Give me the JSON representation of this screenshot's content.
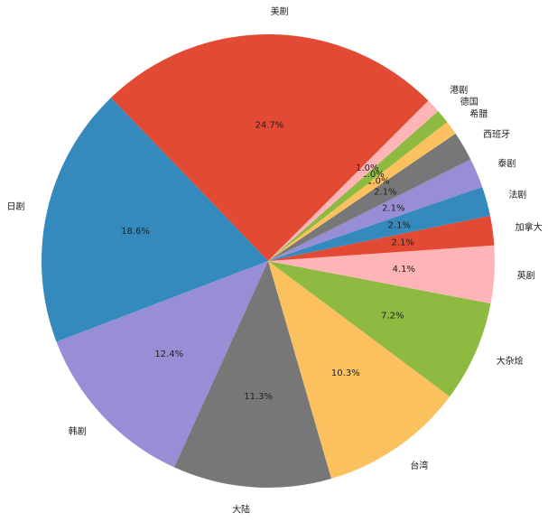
{
  "chart_data": {
    "type": "pie",
    "categories": [
      "美剧",
      "日剧",
      "韩剧",
      "大陆",
      "台湾",
      "大杂烩",
      "英剧",
      "加拿大",
      "法剧",
      "泰剧",
      "西班牙",
      "希腊",
      "德国",
      "港剧"
    ],
    "values": [
      24.7,
      18.6,
      12.4,
      11.3,
      10.3,
      7.2,
      4.1,
      2.1,
      2.1,
      2.1,
      2.1,
      1.0,
      1.0,
      1.0
    ],
    "value_labels": [
      "24.7%",
      "18.6%",
      "12.4%",
      "11.3%",
      "10.3%",
      "7.2%",
      "4.1%",
      "2.1%",
      "2.1%",
      "2.1%",
      "2.1%",
      "1.0%",
      "1.0%",
      "1.0%"
    ],
    "colors": [
      "#E24A33",
      "#348ABD",
      "#988ED5",
      "#777777",
      "#FBC15E",
      "#8EBA42",
      "#FFB5B8",
      "#E24A33",
      "#348ABD",
      "#988ED5",
      "#777777",
      "#FBC15E",
      "#8EBA42",
      "#FFB5B8"
    ]
  }
}
